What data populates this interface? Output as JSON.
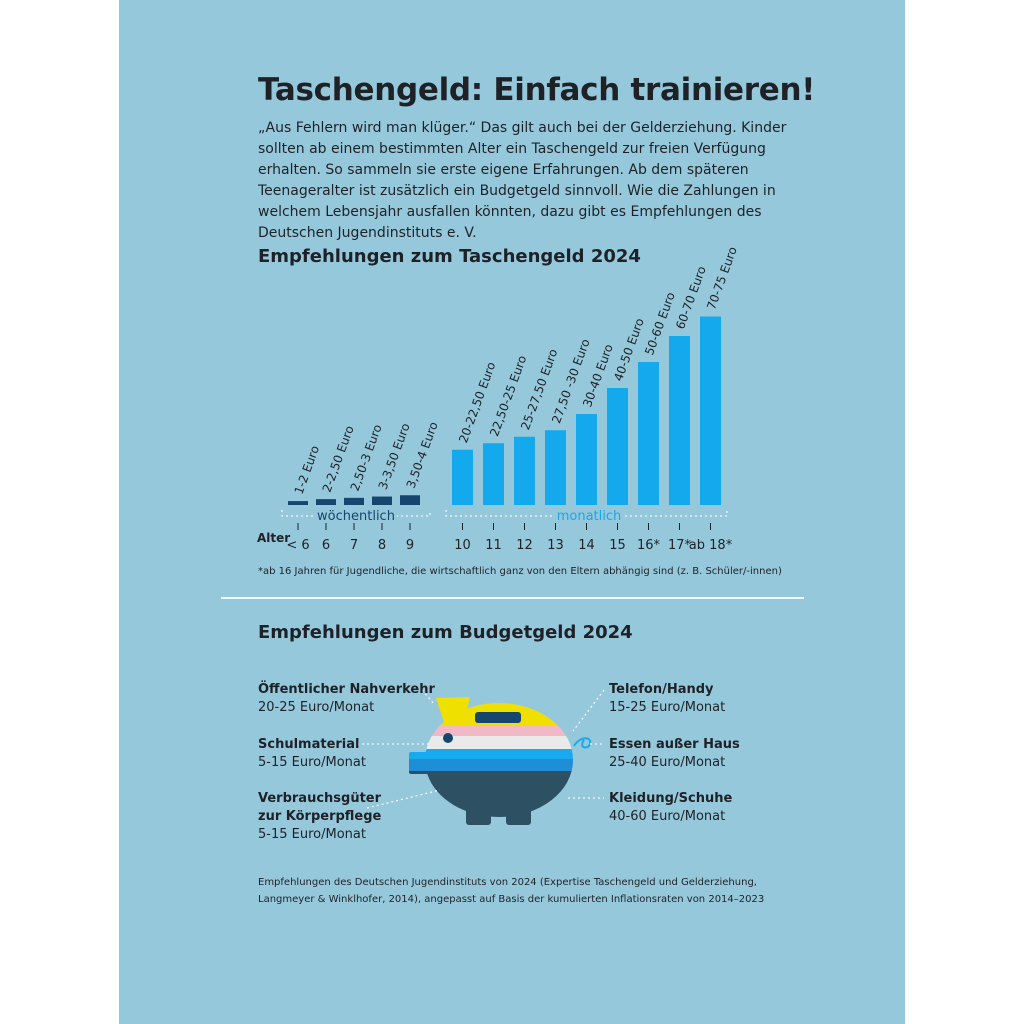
{
  "title": "Taschengeld: Einfach trainieren!",
  "intro": "„Aus Fehlern wird man klüger.“ Das gilt auch bei der Gelderziehung. Kinder sollten ab einem bestimmten Alter ein Taschengeld zur freien Verfügung erhalten. So sammeln sie erste eigene Erfahrungen. Ab dem späteren Teenageralter ist zusätzlich ein Budgetgeld sinnvoll. Wie die Zahlungen in welchem Lebensjahr ausfallen könnten, dazu gibt es Empfehlungen des Deutschen Jugendinstituts e. V.",
  "taschengeld_heading": "Empfehlungen zum Taschengeld 2024",
  "budget_heading": "Empfehlungen zum Budgetgeld 2024",
  "footnote": "*ab 16 Jahren für Jugendliche, die wirtschaftlich ganz von den Eltern abhängig sind (z. B. Schüler/-innen)",
  "colors": {
    "background": "#96c8dc",
    "weekly": "#16456e",
    "monthly": "#14a9ec",
    "text": "#1e2227"
  },
  "chart_data": {
    "type": "bar",
    "title": "Empfehlungen zum Taschengeld 2024",
    "xlabel": "Alter",
    "unit": "Euro",
    "groups": [
      {
        "name": "wöchentlich",
        "categories": [
          "< 6",
          "6",
          "7",
          "8",
          "9"
        ],
        "labels": [
          "1-2 Euro",
          "2-2,50 Euro",
          "2,50-3 Euro",
          "3-3,50 Euro",
          "3,50-4 Euro"
        ],
        "values": [
          1.5,
          2.25,
          2.75,
          3.25,
          3.75
        ]
      },
      {
        "name": "monatlich",
        "categories": [
          "10",
          "11",
          "12",
          "13",
          "14",
          "15",
          "16*",
          "17*",
          "ab 18*"
        ],
        "labels": [
          "20-22,50 Euro",
          "22,50-25 Euro",
          "25-27,50 Euro",
          "27,50 -30 Euro",
          "30-40 Euro",
          "40-50 Euro",
          "50-60 Euro",
          "60-70 Euro",
          "70-75 Euro"
        ],
        "values": [
          21.25,
          23.75,
          26.25,
          28.75,
          35,
          45,
          55,
          65,
          72.5
        ]
      }
    ]
  },
  "budget": {
    "items": [
      {
        "label": "Öffentlicher Nahverkehr",
        "value": "20-25 Euro/Monat"
      },
      {
        "label": "Schulmaterial",
        "value": "5-15 Euro/Monat"
      },
      {
        "label": "Verbrauchsgüter",
        "label2": "zur Körperpflege",
        "value": "5-15 Euro/Monat"
      },
      {
        "label": "Telefon/Handy",
        "value": "15-25 Euro/Monat"
      },
      {
        "label": "Essen außer Haus",
        "value": "25-40 Euro/Monat"
      },
      {
        "label": "Kleidung/Schuhe",
        "value": "40-60 Euro/Monat"
      }
    ]
  },
  "source": "Empfehlungen des Deutschen Jugendinstituts von 2024 (Expertise Taschengeld und Gelderziehung, Langmeyer & Winklhofer, 2014), angepasst auf Basis der kumulierten Inflationsraten von 2014–2023"
}
